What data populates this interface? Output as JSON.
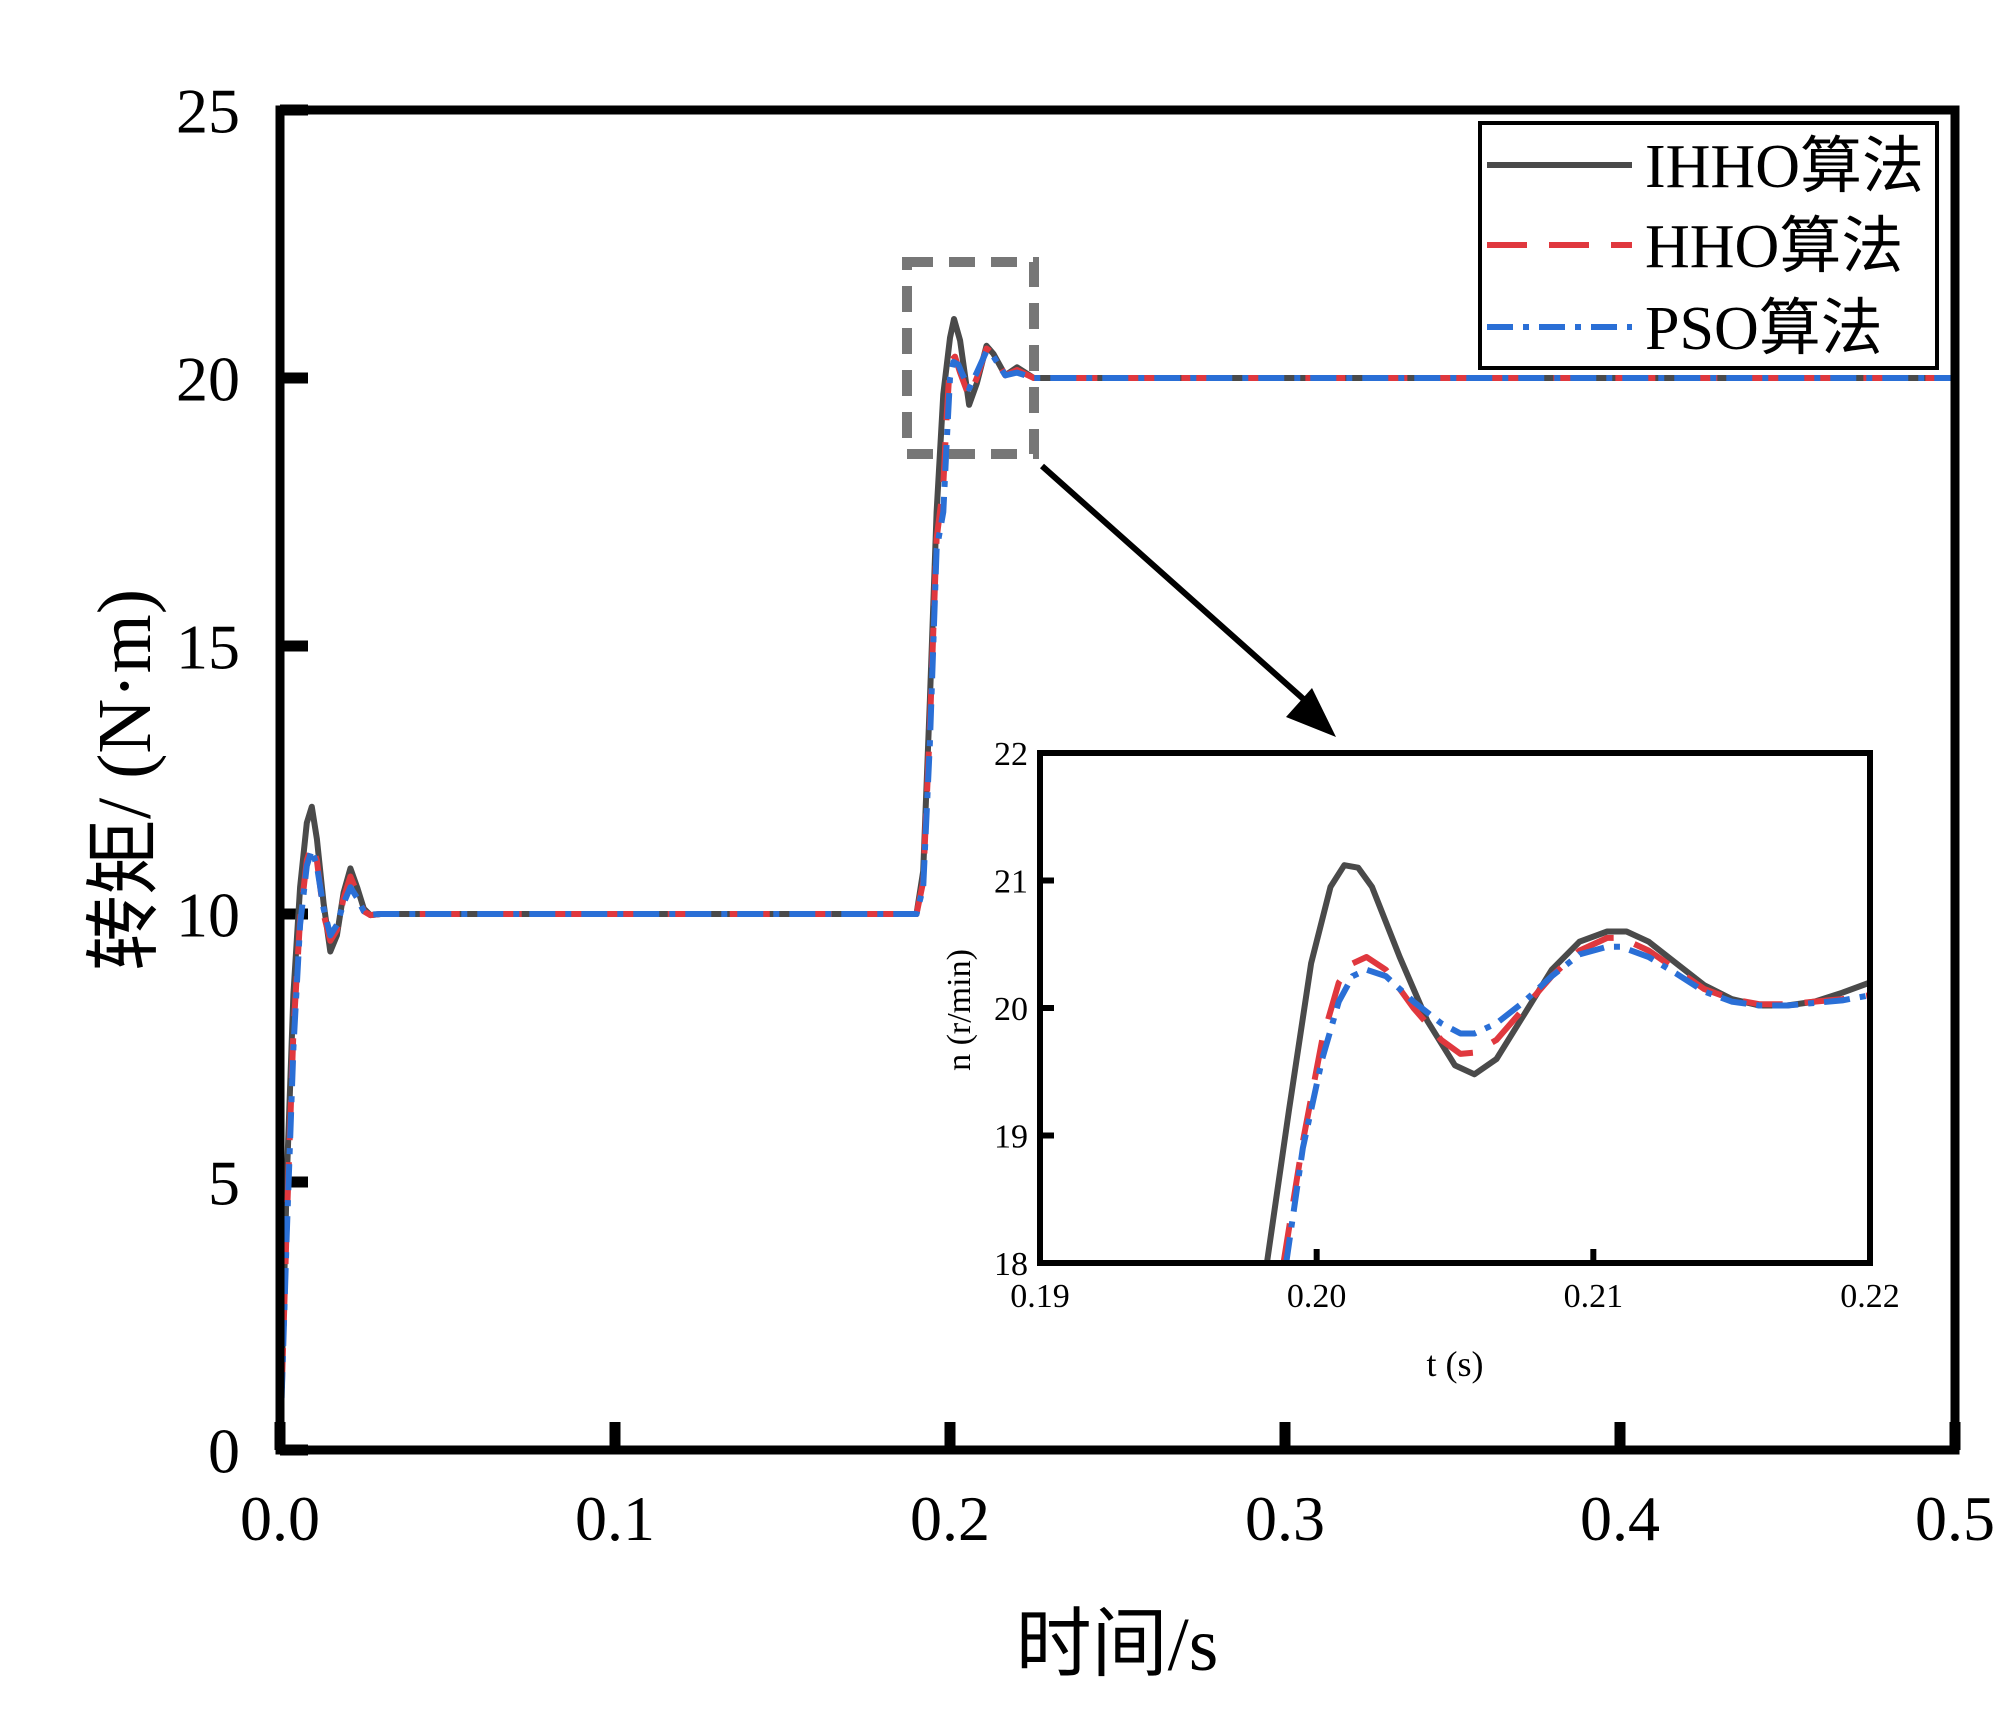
{
  "colors": {
    "ihho": "#4a4a4a",
    "hho": "#e0383e",
    "pso": "#2a6fd6",
    "frame": "#000000",
    "zoom_box": "#777777"
  },
  "chart_data": [
    {
      "id": "main",
      "type": "line",
      "xlabel": "时间/s",
      "ylabel": "转矩/ (N·m)",
      "xlim": [
        0,
        0.5
      ],
      "ylim": [
        0,
        25
      ],
      "x_ticks": [
        0.0,
        0.1,
        0.2,
        0.3,
        0.4,
        0.5
      ],
      "x_tick_labels": [
        "0.0",
        "0.1",
        "0.2",
        "0.3",
        "0.4",
        "0.5"
      ],
      "y_ticks": [
        0,
        5,
        10,
        15,
        20,
        25
      ],
      "y_tick_labels": [
        "0",
        "5",
        "10",
        "15",
        "20",
        "25"
      ],
      "legend_position": "top-right",
      "series": [
        {
          "key": "ihho",
          "name": "IHHO算法",
          "style": "solid",
          "x": [
            0,
            0.002,
            0.004,
            0.006,
            0.008,
            0.0095,
            0.011,
            0.013,
            0.015,
            0.017,
            0.019,
            0.021,
            0.023,
            0.025,
            0.027,
            0.03,
            0.19,
            0.192,
            0.194,
            0.196,
            0.198,
            0.2,
            0.2012,
            0.203,
            0.2057,
            0.208,
            0.2109,
            0.213,
            0.2165,
            0.22,
            0.225,
            0.5
          ],
          "y": [
            0,
            5,
            8.5,
            10.5,
            11.7,
            12.0,
            11.4,
            10.2,
            9.3,
            9.6,
            10.4,
            10.85,
            10.5,
            10.1,
            9.98,
            10.0,
            10.0,
            10.8,
            14,
            17.5,
            19.7,
            20.75,
            21.1,
            20.7,
            19.5,
            19.9,
            20.6,
            20.45,
            20.05,
            20.2,
            20.0,
            20.0
          ]
        },
        {
          "key": "hho",
          "name": "HHO算法",
          "style": "dashed",
          "x": [
            0,
            0.002,
            0.004,
            0.006,
            0.008,
            0.0095,
            0.011,
            0.013,
            0.015,
            0.017,
            0.019,
            0.021,
            0.023,
            0.025,
            0.027,
            0.03,
            0.19,
            0.192,
            0.194,
            0.196,
            0.198,
            0.199,
            0.2,
            0.2015,
            0.203,
            0.2057,
            0.208,
            0.2109,
            0.213,
            0.2165,
            0.22,
            0.225,
            0.5
          ],
          "y": [
            0,
            4.2,
            7.8,
            9.9,
            11.0,
            11.3,
            11.0,
            10.0,
            9.5,
            9.7,
            10.3,
            10.7,
            10.4,
            10.05,
            9.98,
            10.0,
            10.0,
            10.6,
            13.5,
            17.0,
            18.0,
            19.3,
            20.3,
            20.4,
            20.1,
            19.65,
            20.0,
            20.55,
            20.45,
            20.05,
            20.15,
            20.0,
            20.0
          ]
        },
        {
          "key": "pso",
          "name": "PSO算法",
          "style": "dashdot",
          "x": [
            0,
            0.002,
            0.004,
            0.006,
            0.008,
            0.0095,
            0.011,
            0.013,
            0.015,
            0.017,
            0.019,
            0.021,
            0.023,
            0.025,
            0.027,
            0.03,
            0.19,
            0.192,
            0.194,
            0.196,
            0.198,
            0.199,
            0.2,
            0.201,
            0.2025,
            0.2035,
            0.2057,
            0.208,
            0.2109,
            0.213,
            0.2165,
            0.22,
            0.225,
            0.5
          ],
          "y": [
            0,
            4.0,
            7.5,
            9.8,
            10.9,
            11.2,
            10.9,
            10.1,
            9.6,
            9.8,
            10.2,
            10.5,
            10.3,
            10.05,
            9.99,
            10.0,
            10.0,
            10.5,
            13.2,
            16.8,
            17.5,
            18.8,
            20.0,
            20.3,
            20.25,
            20.1,
            19.8,
            20.1,
            20.5,
            20.4,
            20.05,
            20.1,
            20.0,
            20.0
          ]
        }
      ]
    },
    {
      "id": "inset",
      "type": "line",
      "xlabel": "t (s)",
      "ylabel": "n (r/min)",
      "xlim": [
        0.19,
        0.22
      ],
      "ylim": [
        18,
        22
      ],
      "x_ticks": [
        0.19,
        0.2,
        0.21,
        0.22
      ],
      "x_tick_labels": [
        "0.19",
        "0.20",
        "0.21",
        "0.22"
      ],
      "y_ticks": [
        18,
        19,
        20,
        21,
        22
      ],
      "y_tick_labels": [
        "18",
        "19",
        "20",
        "21",
        "22"
      ],
      "series": [
        {
          "key": "ihho",
          "name": "IHHO算法",
          "style": "solid",
          "x": [
            0.1982,
            0.199,
            0.1998,
            0.2005,
            0.201,
            0.2015,
            0.202,
            0.203,
            0.204,
            0.205,
            0.2057,
            0.2065,
            0.2075,
            0.2085,
            0.2095,
            0.2105,
            0.2112,
            0.212,
            0.213,
            0.214,
            0.215,
            0.216,
            0.217,
            0.218,
            0.219,
            0.22
          ],
          "y": [
            18.0,
            19.2,
            20.35,
            20.95,
            21.12,
            21.1,
            20.95,
            20.4,
            19.9,
            19.55,
            19.48,
            19.6,
            19.95,
            20.3,
            20.52,
            20.6,
            20.6,
            20.52,
            20.35,
            20.18,
            20.07,
            20.02,
            20.02,
            20.05,
            20.12,
            20.2
          ]
        },
        {
          "key": "hho",
          "name": "HHO算法",
          "style": "dashed",
          "x": [
            0.1988,
            0.1995,
            0.2002,
            0.2008,
            0.2013,
            0.2018,
            0.2025,
            0.2035,
            0.2045,
            0.2052,
            0.2057,
            0.2065,
            0.2075,
            0.2085,
            0.2095,
            0.2105,
            0.211,
            0.212,
            0.213,
            0.214,
            0.215,
            0.216,
            0.217,
            0.218,
            0.219,
            0.22
          ],
          "y": [
            18.0,
            18.95,
            19.75,
            20.2,
            20.35,
            20.4,
            20.3,
            20.0,
            19.75,
            19.64,
            19.65,
            19.75,
            20.0,
            20.25,
            20.45,
            20.55,
            20.55,
            20.45,
            20.3,
            20.15,
            20.07,
            20.03,
            20.03,
            20.05,
            20.07,
            20.1
          ]
        },
        {
          "key": "pso",
          "name": "PSO算法",
          "style": "dashdot",
          "x": [
            0.1989,
            0.1995,
            0.2002,
            0.2008,
            0.2013,
            0.2018,
            0.2025,
            0.2035,
            0.2045,
            0.2052,
            0.2057,
            0.2065,
            0.2075,
            0.2085,
            0.2095,
            0.2105,
            0.211,
            0.212,
            0.213,
            0.214,
            0.215,
            0.216,
            0.217,
            0.218,
            0.219,
            0.22
          ],
          "y": [
            18.0,
            18.9,
            19.6,
            20.05,
            20.25,
            20.3,
            20.25,
            20.05,
            19.88,
            19.8,
            19.8,
            19.88,
            20.05,
            20.25,
            20.42,
            20.48,
            20.48,
            20.4,
            20.27,
            20.13,
            20.05,
            20.02,
            20.02,
            20.04,
            20.06,
            20.1
          ]
        }
      ]
    }
  ]
}
